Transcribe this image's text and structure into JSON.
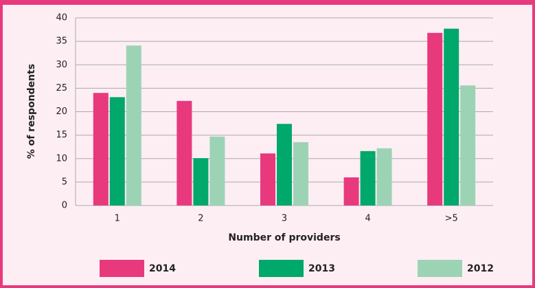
{
  "chart_data": {
    "type": "bar",
    "categories": [
      "1",
      "2",
      "3",
      "4",
      ">5"
    ],
    "series": [
      {
        "name": "2014",
        "color": "#e8397d",
        "values": [
          24.0,
          22.3,
          11.1,
          6.0,
          36.8
        ]
      },
      {
        "name": "2013",
        "color": "#00a86b",
        "values": [
          23.1,
          10.1,
          17.4,
          11.6,
          37.7
        ]
      },
      {
        "name": "2012",
        "color": "#9dd3b5",
        "values": [
          34.1,
          14.7,
          13.5,
          12.2,
          25.6
        ]
      }
    ],
    "x_label": "Number of providers",
    "y_label": "% of respondents",
    "ylim": [
      0,
      40
    ],
    "yticks": [
      0,
      5,
      10,
      15,
      20,
      25,
      30,
      35,
      40
    ],
    "grid": true,
    "legend": "bottom"
  }
}
